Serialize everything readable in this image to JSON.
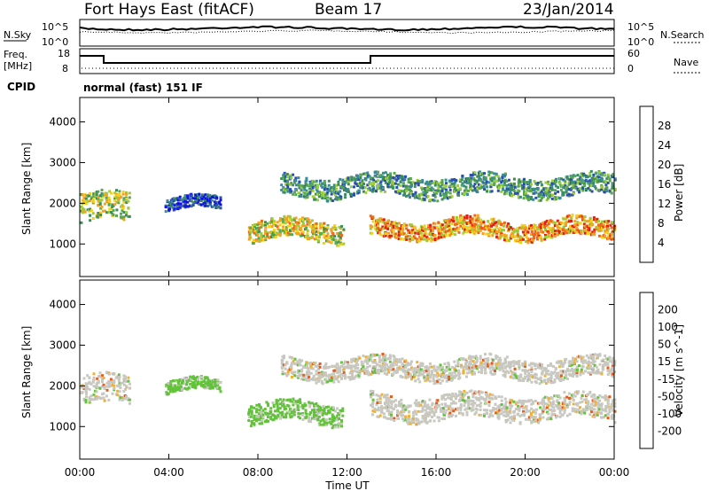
{
  "header": {
    "station": "Fort Hays East (fitACF)",
    "beam": "Beam 17",
    "date": "23/Jan/2014"
  },
  "strip_labels": {
    "nsky": "N.Sky",
    "nsearch": "N.Search",
    "freq": "Freq.",
    "freq_unit": "[MHz]",
    "nave": "Nave",
    "cpid": "CPID",
    "cpid_text": "normal (fast) 151 IF"
  },
  "strip_ticks": {
    "noise_left": [
      "10^5",
      "10^0"
    ],
    "noise_right": [
      "10^5",
      "10^0"
    ],
    "freq_left": [
      "18",
      "8"
    ],
    "freq_right": [
      "60",
      "0"
    ]
  },
  "colors": {
    "power": [
      "#1010e0",
      "#2a4fb0",
      "#3a8a9a",
      "#3c8c5c",
      "#58a850",
      "#9ccc3c",
      "#f0d020",
      "#f6a020",
      "#ef6818",
      "#e02010"
    ],
    "velocity": [
      "#2030c8",
      "#2f64a8",
      "#3c8c5c",
      "#62c23a",
      "#c8c8c0",
      "#f0b030",
      "#f28a20",
      "#e85a18",
      "#e02010"
    ]
  },
  "chart_data": [
    {
      "type": "heatmap",
      "panel": "power",
      "ylabel": "Slant Range [km]",
      "yticks": [
        "1000",
        "2000",
        "3000",
        "4000"
      ],
      "ylim": [
        200,
        4600
      ],
      "xlim": [
        0,
        24
      ],
      "colorbar_label": "Power [dB]",
      "colorbar_ticks": [
        "4",
        "8",
        "12",
        "16",
        "20",
        "24",
        "28"
      ],
      "colorbar_range": [
        0,
        32
      ],
      "regions": [
        {
          "t0": 0.0,
          "t1": 2.2,
          "r_center": 1900,
          "r_width": 700,
          "level": 0.55
        },
        {
          "t0": 3.8,
          "t1": 6.3,
          "r_center": 2000,
          "r_width": 300,
          "level": 0.15
        },
        {
          "t0": 7.5,
          "t1": 11.8,
          "r_center": 1350,
          "r_width": 500,
          "level": 0.6
        },
        {
          "t0": 9.0,
          "t1": 24.0,
          "r_center": 2450,
          "r_width": 500,
          "level": 0.35
        },
        {
          "t0": 13.0,
          "t1": 24.0,
          "r_center": 1400,
          "r_width": 450,
          "level": 0.75
        }
      ]
    },
    {
      "type": "heatmap",
      "panel": "velocity",
      "ylabel": "Slant Range [km]",
      "yticks": [
        "1000",
        "2000",
        "3000",
        "4000"
      ],
      "ylim": [
        200,
        4600
      ],
      "xlim": [
        0,
        24
      ],
      "xticks": [
        "00:00",
        "04:00",
        "08:00",
        "12:00",
        "16:00",
        "20:00",
        "00:00"
      ],
      "xlabel": "Time UT",
      "colorbar_label": "Velocity [m s^-1]",
      "colorbar_ticks": [
        "200",
        "100",
        "50",
        "15",
        "-15",
        "-50",
        "-100",
        "-200"
      ],
      "regions": [
        {
          "t0": 0.0,
          "t1": 2.2,
          "r_center": 1900,
          "r_width": 700,
          "velocity": 0
        },
        {
          "t0": 3.8,
          "t1": 6.3,
          "r_center": 2000,
          "r_width": 300,
          "velocity": 40
        },
        {
          "t0": 7.5,
          "t1": 11.8,
          "r_center": 1350,
          "r_width": 500,
          "velocity": 60
        },
        {
          "t0": 9.0,
          "t1": 24.0,
          "r_center": 2450,
          "r_width": 500,
          "velocity": 0
        },
        {
          "t0": 13.0,
          "t1": 24.0,
          "r_center": 1500,
          "r_width": 600,
          "velocity": 0
        }
      ]
    }
  ]
}
